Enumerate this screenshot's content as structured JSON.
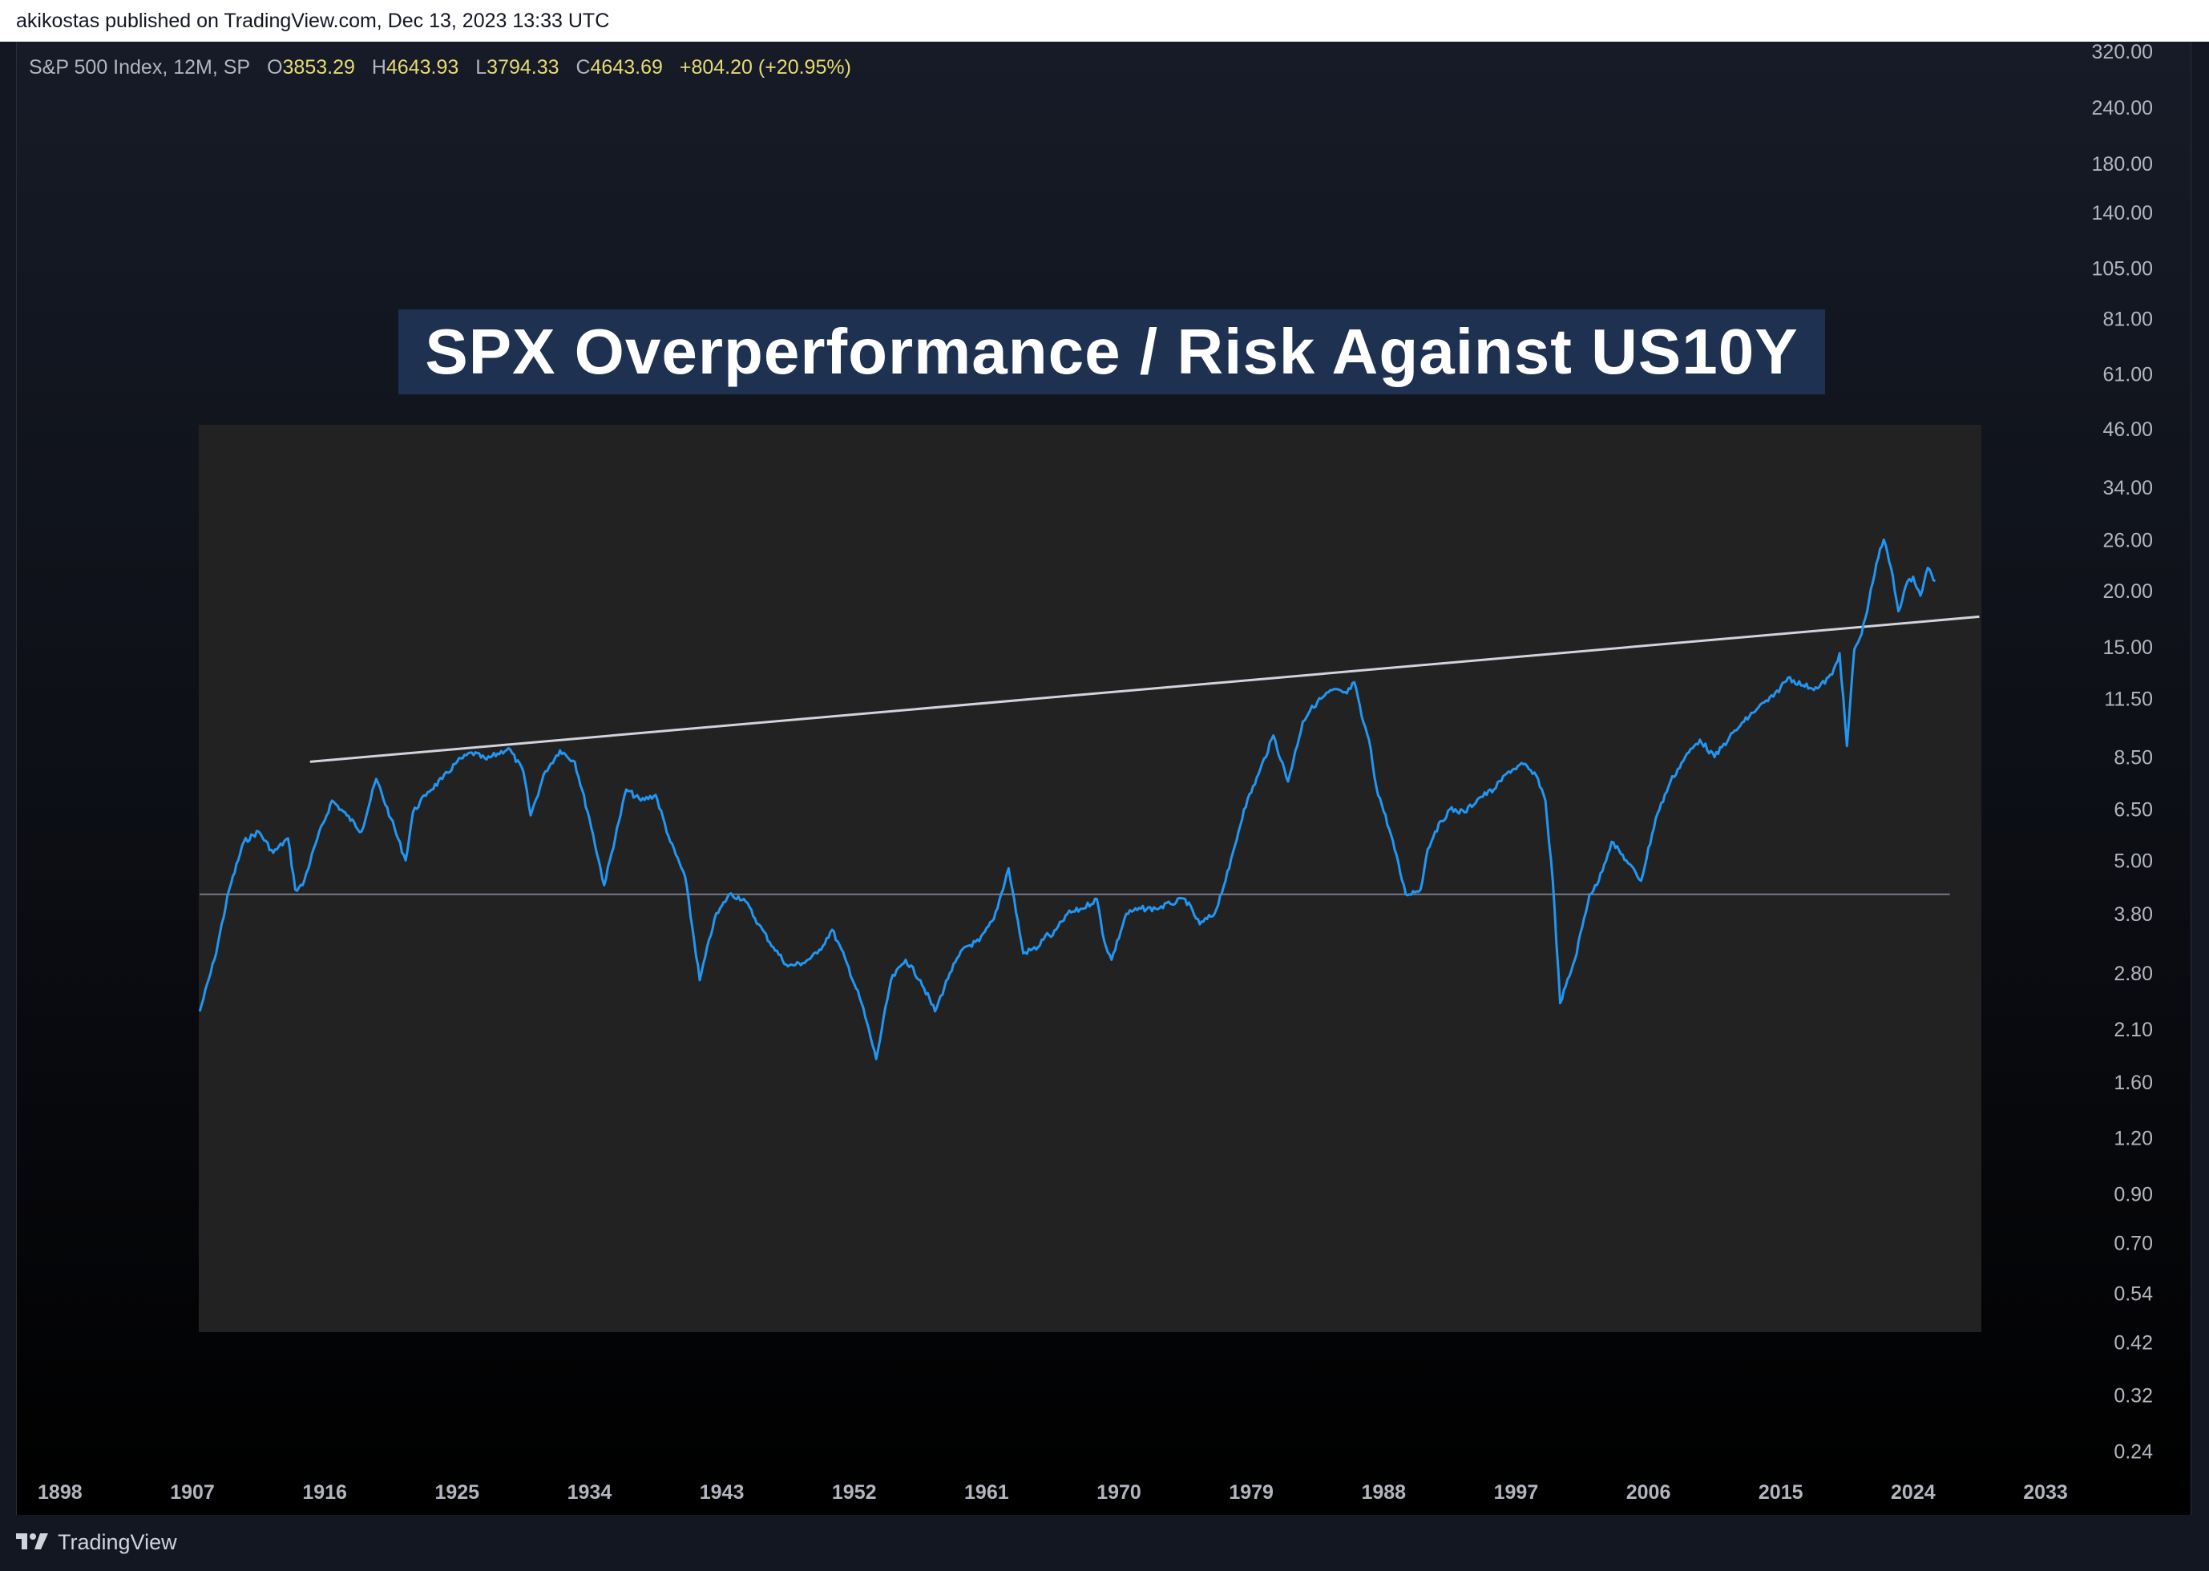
{
  "header": {
    "published_text": "akikostas published on TradingView.com, Dec 13, 2023 13:33 UTC"
  },
  "legend": {
    "symbol": "S&P 500 Index, 12M, SP",
    "open_label": "O",
    "open_value": "3853.29",
    "high_label": "H",
    "high_value": "4643.93",
    "low_label": "L",
    "low_value": "3794.33",
    "close_label": "C",
    "close_value": "4643.69",
    "change": "+804.20 (+20.95%)",
    "value_color": "#e6db74"
  },
  "chart_data": {
    "type": "line",
    "title": "SPX Overperformance / Risk Against US10Y",
    "yscale": "log",
    "ylim": [
      0.2,
      340
    ],
    "xlim": [
      1895,
      2037
    ],
    "x_ticks": [
      "1898",
      "1907",
      "1916",
      "1925",
      "1934",
      "1943",
      "1952",
      "1961",
      "1970",
      "1979",
      "1988",
      "1997",
      "2006",
      "2015",
      "2024",
      "2033"
    ],
    "y_ticks": [
      "320.00",
      "240.00",
      "180.00",
      "140.00",
      "105.00",
      "81.00",
      "61.00",
      "46.00",
      "34.00",
      "26.00",
      "20.00",
      "15.00",
      "11.50",
      "8.50",
      "6.50",
      "5.00",
      "3.80",
      "2.80",
      "2.10",
      "1.60",
      "1.20",
      "0.90",
      "0.70",
      "0.54",
      "0.42",
      "0.32",
      "0.24"
    ],
    "line_color": "#2196f3",
    "panel_color": "#222222",
    "series": [
      {
        "x": [
          1907.5,
          1908.5,
          1909.5,
          1910.5,
          1911.5,
          1912.5,
          1913.5,
          1914.0,
          1914.5,
          1915.5,
          1916.5,
          1917.5,
          1918.5,
          1919.5,
          1920.5,
          1921.5,
          1922.0,
          1923.0,
          1924.0,
          1925.0,
          1926.0,
          1927.0,
          1928.5,
          1929.5,
          1930.0,
          1931.0,
          1932.0,
          1933.0,
          1934.0,
          1935.0,
          1936.0,
          1936.5,
          1937.5,
          1938.5,
          1939.5,
          1940.5,
          1941.5,
          1942.5,
          1943.5,
          1944.5,
          1945.5,
          1946.5,
          1947.5,
          1948.5,
          1949.5,
          1950.5,
          1951.5,
          1952.5,
          1953.5,
          1954.5,
          1955.5,
          1956.5,
          1957.5,
          1958.5,
          1959.5,
          1960.5,
          1961.5,
          1962.5,
          1963.5,
          1964.5,
          1965.0,
          1965.5,
          1966.5,
          1967.5,
          1968.5,
          1969.0,
          1969.5,
          1970.5,
          1971.5,
          1972.5,
          1973.5,
          1974.5,
          1975.5,
          1976.5,
          1977.5,
          1978.5,
          1979.5,
          1980.5,
          1981.5,
          1982.5,
          1983.0,
          1983.5,
          1984.5,
          1985.5,
          1986.0,
          1986.5,
          1987.0,
          1987.5,
          1988.5,
          1989.5,
          1990.5,
          1991.0,
          1991.5,
          1992.5,
          1993.5,
          1994.5,
          1995.5,
          1996.5,
          1997.5,
          1998.5,
          1999.0,
          1999.5,
          2000.0,
          2001.0,
          2002.0,
          2002.5,
          2003.5,
          2004.5,
          2005.5,
          2006.5,
          2007.5,
          2008.5,
          2009.5,
          2010.5,
          2011.5,
          2012.5,
          2013.5,
          2014.5,
          2015.5,
          2016.5,
          2017.5,
          2018.5,
          2019.0,
          2019.5,
          2020.0,
          2020.5,
          2021.0,
          2021.5,
          2022.0,
          2022.5,
          2023.0,
          2023.5,
          2024.0,
          2024.5,
          2025.0,
          2025.5
        ],
        "y": [
          2.3,
          3.0,
          4.3,
          5.5,
          5.8,
          5.2,
          5.6,
          4.3,
          4.4,
          5.6,
          6.8,
          6.3,
          5.8,
          7.6,
          6.2,
          5.0,
          6.4,
          7.1,
          7.6,
          8.3,
          8.7,
          8.4,
          8.9,
          7.9,
          6.3,
          7.9,
          8.8,
          8.3,
          6.2,
          4.4,
          6.1,
          7.2,
          6.8,
          7.0,
          5.5,
          4.6,
          2.7,
          3.7,
          4.2,
          4.1,
          3.6,
          3.2,
          2.9,
          2.95,
          3.1,
          3.5,
          2.95,
          2.4,
          1.8,
          2.7,
          3.0,
          2.7,
          2.3,
          2.8,
          3.2,
          3.3,
          3.7,
          4.8,
          3.1,
          3.2,
          3.4,
          3.4,
          3.8,
          3.9,
          4.1,
          3.3,
          3.0,
          3.8,
          3.9,
          3.9,
          4.0,
          4.1,
          3.6,
          3.8,
          4.8,
          6.5,
          7.8,
          9.5,
          7.5,
          10.2,
          10.8,
          11.3,
          12.0,
          11.8,
          12.5,
          10.5,
          9.3,
          7.3,
          5.7,
          4.2,
          4.3,
          5.3,
          5.8,
          6.5,
          6.4,
          6.9,
          7.2,
          7.9,
          8.2,
          7.6,
          6.8,
          4.5,
          2.4,
          3.0,
          4.2,
          4.4,
          5.5,
          5.0,
          4.5,
          6.2,
          7.5,
          8.5,
          9.3,
          8.5,
          9.4,
          10.2,
          11.0,
          11.6,
          12.8,
          12.3,
          12.1,
          13.0,
          14.5,
          9.0,
          14.8,
          16.0,
          19.0,
          23.0,
          26.0,
          22.5,
          18.0,
          20.5,
          21.5,
          19.5,
          22.5,
          21.0
        ]
      }
    ],
    "annotations": [
      {
        "type": "trendline",
        "color": "#d1d4dc",
        "points": [
          [
            1915.0,
            8.3
          ],
          [
            2028.5,
            17.5
          ]
        ]
      },
      {
        "type": "horizontal",
        "color": "#787b86",
        "y": 4.2,
        "x_start": 1907.5,
        "x_end": 2026.5
      }
    ]
  },
  "footer": {
    "brand": "TradingView"
  }
}
